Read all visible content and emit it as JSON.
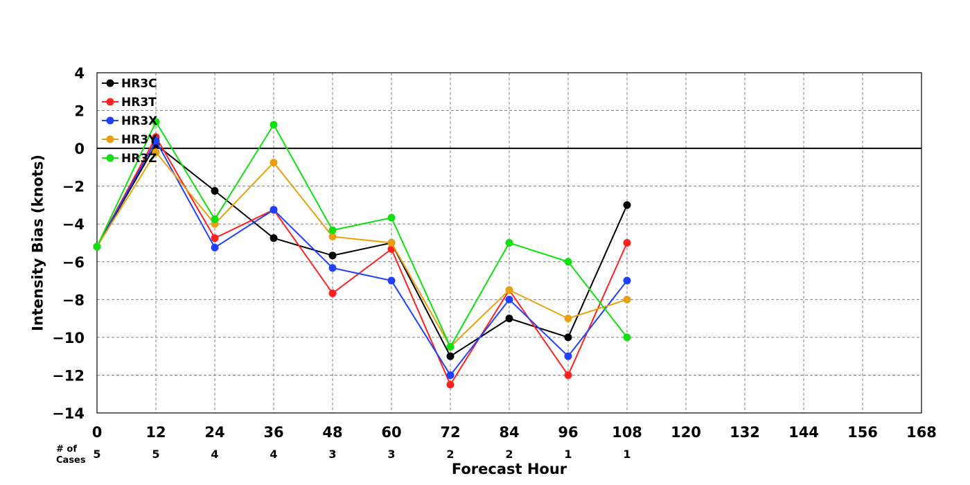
{
  "chart_data": {
    "type": "line",
    "title": "",
    "xlabel": "Forecast Hour",
    "ylabel": "Intensity Bias (knots)",
    "xlim": [
      0,
      168
    ],
    "ylim": [
      -14,
      4
    ],
    "x_ticks": [
      0,
      12,
      24,
      36,
      48,
      60,
      72,
      84,
      96,
      108,
      120,
      132,
      144,
      156,
      168
    ],
    "y_ticks": [
      4,
      2,
      0,
      -2,
      -4,
      -6,
      -8,
      -10,
      -12,
      -14
    ],
    "y_tick_labels": [
      "4",
      "2",
      "0",
      "−2",
      "−4",
      "−6",
      "−8",
      "−10",
      "−12",
      "−14"
    ],
    "grid": true,
    "zero_line": true,
    "legend_position": "top-left",
    "cases_title": [
      "# of",
      "Cases"
    ],
    "cases": [
      {
        "x": 0,
        "count": "5"
      },
      {
        "x": 12,
        "count": "5"
      },
      {
        "x": 24,
        "count": "4"
      },
      {
        "x": 36,
        "count": "4"
      },
      {
        "x": 48,
        "count": "3"
      },
      {
        "x": 60,
        "count": "3"
      },
      {
        "x": 72,
        "count": "2"
      },
      {
        "x": 84,
        "count": "2"
      },
      {
        "x": 96,
        "count": "1"
      },
      {
        "x": 108,
        "count": "1"
      }
    ],
    "x": [
      0,
      12,
      24,
      36,
      48,
      60,
      72,
      84,
      96,
      108
    ],
    "series": [
      {
        "name": "HR3C",
        "color": "#000000",
        "values": [
          -5.2,
          0.2,
          -2.25,
          -4.75,
          -5.67,
          -5.0,
          -11.0,
          -9.0,
          -10.0,
          -3.0
        ]
      },
      {
        "name": "HR3T",
        "color": "#ff2020",
        "values": [
          -5.2,
          0.6,
          -4.75,
          -3.25,
          -7.67,
          -5.33,
          -12.5,
          -7.5,
          -12.0,
          -5.0
        ]
      },
      {
        "name": "HR3X",
        "color": "#2040ff",
        "values": [
          -5.2,
          0.4,
          -5.25,
          -3.25,
          -6.33,
          -7.0,
          -12.0,
          -8.0,
          -11.0,
          -7.0
        ]
      },
      {
        "name": "HR3Y",
        "color": "#e8a010",
        "values": [
          -5.2,
          -0.2,
          -4.0,
          -0.75,
          -4.67,
          -5.0,
          -10.5,
          -7.5,
          -9.0,
          -8.0
        ]
      },
      {
        "name": "HR3Z",
        "color": "#10e010",
        "values": [
          -5.2,
          1.4,
          -3.75,
          1.25,
          -4.33,
          -3.67,
          -10.5,
          -5.0,
          -6.0,
          -10.0
        ]
      }
    ]
  }
}
